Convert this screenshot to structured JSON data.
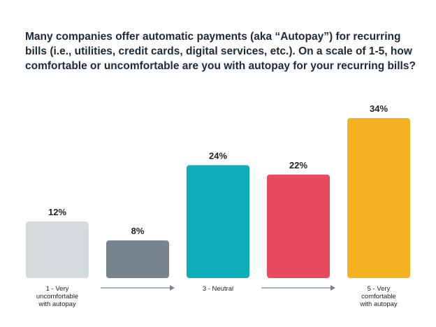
{
  "title": "Many companies offer automatic payments (aka “Autopay”) for recurring bills (i.e., utilities, credit cards, digital services, etc.). On a scale of 1-5, how comfortable or uncomfortable are you with autopay for your recurring bills?",
  "chart_data": {
    "type": "bar",
    "title": "Many companies offer automatic payments (aka “Autopay”) for recurring bills (i.e., utilities, credit cards, digital services, etc.). On a scale of 1-5, how comfortable or uncomfortable are you with autopay for your recurring bills?",
    "categories": [
      [
        "1 - Very",
        "uncomfortable",
        "with autopay"
      ],
      [],
      [
        "3 - Neutral"
      ],
      [],
      [
        "5 - Very",
        "comfortable",
        "with autopay"
      ]
    ],
    "values": [
      12,
      8,
      24,
      22,
      34
    ],
    "value_labels": [
      "12%",
      "8%",
      "24%",
      "22%",
      "34%"
    ],
    "colors": [
      "#d5dbdc",
      "#76848d",
      "#0fadb9",
      "#e84b5f",
      "#f3b121"
    ],
    "ylim": [
      0,
      34
    ],
    "grid": false,
    "legend": "none",
    "axis_arrows": [
      "1-to-3",
      "3-to-5"
    ]
  }
}
